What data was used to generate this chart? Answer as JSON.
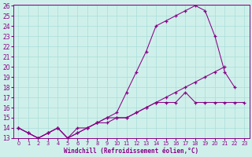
{
  "xlabel": "Windchill (Refroidissement éolien,°C)",
  "background_color": "#cff0ea",
  "grid_color": "#aaddda",
  "line_color": "#880088",
  "x_values": [
    0,
    1,
    2,
    3,
    4,
    5,
    6,
    7,
    8,
    9,
    10,
    11,
    12,
    13,
    14,
    15,
    16,
    17,
    18,
    19,
    20,
    21,
    22,
    23
  ],
  "line1_y": [
    14.0,
    13.5,
    13.0,
    13.5,
    14.0,
    13.0,
    13.5,
    14.0,
    14.5,
    14.5,
    15.0,
    15.0,
    15.5,
    16.0,
    16.5,
    17.0,
    17.5,
    18.0,
    18.5,
    19.0,
    19.5,
    20.0,
    null,
    null
  ],
  "line2_y": [
    14.0,
    13.5,
    13.0,
    13.5,
    14.0,
    13.0,
    14.0,
    14.0,
    14.5,
    15.0,
    15.5,
    17.5,
    19.5,
    21.5,
    24.0,
    24.5,
    25.0,
    25.5,
    26.0,
    25.5,
    23.0,
    19.5,
    18.0,
    null
  ],
  "line3_y": [
    14.0,
    13.5,
    13.0,
    13.5,
    14.0,
    13.0,
    13.5,
    14.0,
    14.5,
    15.0,
    15.0,
    15.0,
    15.5,
    16.0,
    16.5,
    16.5,
    16.5,
    17.5,
    16.5,
    16.5,
    16.5,
    16.5,
    16.5,
    16.5
  ],
  "ylim": [
    13,
    26
  ],
  "xlim": [
    -0.5,
    23.5
  ],
  "yticks": [
    13,
    14,
    15,
    16,
    17,
    18,
    19,
    20,
    21,
    22,
    23,
    24,
    25,
    26
  ],
  "xticks": [
    0,
    1,
    2,
    3,
    4,
    5,
    6,
    7,
    8,
    9,
    10,
    11,
    12,
    13,
    14,
    15,
    16,
    17,
    18,
    19,
    20,
    21,
    22,
    23
  ]
}
